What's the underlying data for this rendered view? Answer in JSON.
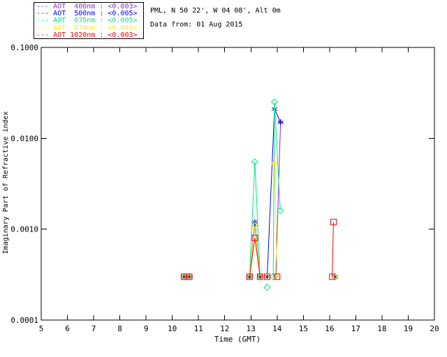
{
  "header": {
    "line1": "PML, N 50 22', W 04 08', Alt 0m",
    "line2": "Data from: 01 Aug 2015"
  },
  "legend": {
    "items": [
      {
        "dashes": "---",
        "label": "AOT  400nm : <0.003>"
      },
      {
        "dashes": "---",
        "label": "AOT  500nm : <0.005>"
      },
      {
        "dashes": "---",
        "label": "AOT  675nm : <0.005>"
      },
      {
        "dashes": "---",
        "label": "AOT  870nm : <0.003>"
      },
      {
        "dashes": "---",
        "label": "AOT 1020nm : <0.003>"
      }
    ]
  },
  "chart_data": {
    "type": "line",
    "title": "",
    "xlabel": "Time (GMT)",
    "ylabel": "Imaginary Part of Refractive index",
    "xlim": [
      5,
      20
    ],
    "ylim": [
      0.0001,
      0.1
    ],
    "yscale": "log",
    "xticks": [
      5,
      6,
      7,
      8,
      9,
      10,
      11,
      12,
      13,
      14,
      15,
      16,
      17,
      18,
      19,
      20
    ],
    "yticks": [
      {
        "value": 0.1,
        "label": "0.1000"
      },
      {
        "value": 0.01,
        "label": "0.0100"
      },
      {
        "value": 0.001,
        "label": "0.0010"
      },
      {
        "value": 0.0001,
        "label": "0.0001"
      }
    ],
    "grid": false,
    "legend_position": "top-left-outside",
    "series": [
      {
        "name": "AOT 400nm",
        "wavelength": "400nm",
        "aot_value": "<0.003>",
        "color": "#8A2BE2",
        "marker": "plus",
        "segments": [
          [
            [
              10.45,
              0.0003
            ],
            [
              10.65,
              0.0003
            ]
          ],
          [
            [
              12.95,
              0.0003
            ],
            [
              13.15,
              0.0011
            ],
            [
              13.35,
              0.0003
            ]
          ],
          [
            [
              13.95,
              0.0003
            ],
            [
              14.13,
              0.015
            ]
          ]
        ]
      },
      {
        "name": "AOT 500nm",
        "wavelength": "500nm",
        "aot_value": "<0.005>",
        "color": "#0000FF",
        "marker": "asterisk",
        "segments": [
          [
            [
              10.45,
              0.0003
            ],
            [
              10.65,
              0.0003
            ]
          ],
          [
            [
              12.95,
              0.0003
            ],
            [
              13.15,
              0.0012
            ],
            [
              13.35,
              0.0003
            ]
          ],
          [
            [
              13.62,
              0.0003
            ],
            [
              13.9,
              0.021
            ],
            [
              14.13,
              0.015
            ]
          ],
          [
            [
              16.2,
              0.0003
            ]
          ]
        ]
      },
      {
        "name": "AOT 675nm",
        "wavelength": "675nm",
        "aot_value": "<0.005>",
        "color": "#00E87D",
        "marker": "diamond",
        "segments": [
          [
            [
              10.45,
              0.0003
            ],
            [
              10.65,
              0.0003
            ]
          ],
          [
            [
              12.95,
              0.0003
            ],
            [
              13.15,
              0.0055
            ],
            [
              13.35,
              0.0003
            ]
          ],
          [
            [
              13.62,
              0.00023
            ]
          ],
          [
            [
              13.85,
              0.0003
            ],
            [
              13.9,
              0.025
            ],
            [
              14.12,
              0.0016
            ]
          ],
          [
            [
              16.2,
              0.0003
            ]
          ]
        ]
      },
      {
        "name": "AOT 870nm",
        "wavelength": "870nm",
        "aot_value": "<0.003>",
        "color": "#FFEB00",
        "marker": "triangle",
        "segments": [
          [
            [
              10.45,
              0.0003
            ],
            [
              10.65,
              0.0003
            ]
          ],
          [
            [
              12.95,
              0.0003
            ],
            [
              13.15,
              0.0011
            ],
            [
              13.35,
              0.0003
            ]
          ],
          [
            [
              13.62,
              0.0003
            ]
          ],
          [
            [
              13.9,
              0.0055
            ],
            [
              14.0,
              0.0003
            ]
          ],
          [
            [
              16.22,
              0.0003
            ]
          ]
        ]
      },
      {
        "name": "AOT 1020nm",
        "wavelength": "1020nm",
        "aot_value": "<0.003>",
        "color": "#FF0000",
        "marker": "square",
        "segments": [
          [
            [
              10.45,
              0.0003
            ],
            [
              10.65,
              0.0003
            ]
          ],
          [
            [
              12.95,
              0.0003
            ],
            [
              13.15,
              0.0008
            ],
            [
              13.35,
              0.0003
            ]
          ],
          [
            [
              13.62,
              0.0003
            ]
          ],
          [
            [
              14.0,
              0.0003
            ]
          ],
          [
            [
              16.1,
              0.0003
            ],
            [
              16.15,
              0.0012
            ]
          ]
        ]
      }
    ]
  }
}
